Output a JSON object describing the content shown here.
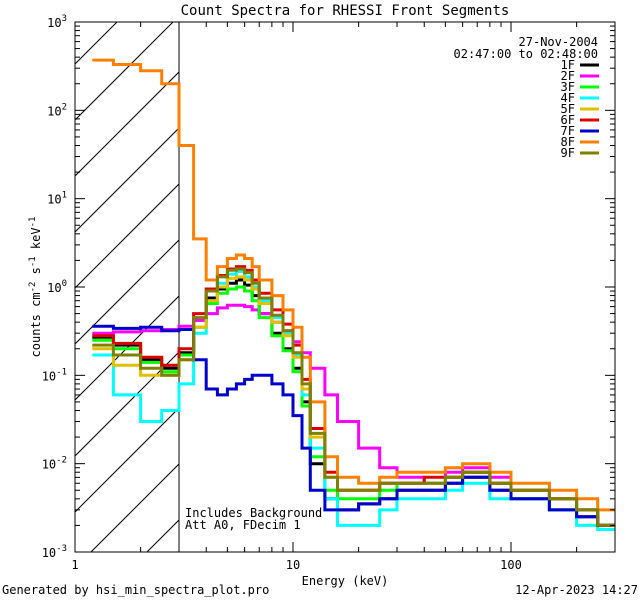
{
  "chart_data": {
    "type": "line",
    "title": "Count Spectra for RHESSI Front Segments",
    "xlabel": "Energy (keV)",
    "ylabel": "counts cm^-2 s^-1 keV^-1",
    "xscale": "log",
    "yscale": "log",
    "xlim": [
      1,
      300
    ],
    "ylim": [
      0.001,
      1000
    ],
    "x_ticks": [
      {
        "v": 1,
        "label": "1"
      },
      {
        "v": 10,
        "label": "10"
      },
      {
        "v": 100,
        "label": "100"
      }
    ],
    "y_ticks": [
      {
        "v": 0.001,
        "base": "10",
        "exp": "-3"
      },
      {
        "v": 0.01,
        "base": "10",
        "exp": "-2"
      },
      {
        "v": 0.1,
        "base": "10",
        "exp": "-1"
      },
      {
        "v": 1,
        "base": "10",
        "exp": "0"
      },
      {
        "v": 10,
        "base": "10",
        "exp": "1"
      },
      {
        "v": 100,
        "base": "10",
        "exp": "2"
      },
      {
        "v": 1000,
        "base": "10",
        "exp": "3"
      }
    ],
    "hatch_region": [
      1,
      3
    ],
    "legend_position": "top-right",
    "date": "27-Nov-2004",
    "time_range": "02:47:00 to 02:48:00",
    "annotations": [
      "Includes Background",
      "Att A0, FDecim 1"
    ],
    "series": [
      {
        "name": "1F",
        "color": "#000000",
        "x": [
          1.2,
          1.5,
          2,
          2.5,
          3,
          3.5,
          4,
          4.5,
          5,
          5.5,
          6,
          6.5,
          7,
          8,
          9,
          10,
          11,
          12,
          14,
          16,
          20,
          25,
          30,
          40,
          50,
          60,
          80,
          100,
          150,
          200,
          250
        ],
        "y": [
          0.27,
          0.22,
          0.15,
          0.12,
          0.18,
          0.42,
          0.75,
          0.95,
          1.1,
          1.2,
          1.05,
          0.8,
          0.5,
          0.3,
          0.2,
          0.12,
          0.05,
          0.01,
          0.004,
          0.003,
          0.0035,
          0.004,
          0.005,
          0.005,
          0.006,
          0.007,
          0.005,
          0.004,
          0.003,
          0.0025,
          0.002
        ]
      },
      {
        "name": "2F",
        "color": "#ff00ff",
        "x": [
          1.2,
          1.5,
          2,
          2.5,
          3,
          3.5,
          4,
          4.5,
          5,
          5.5,
          6,
          6.5,
          7,
          8,
          9,
          10,
          11,
          12,
          14,
          16,
          20,
          25,
          30,
          40,
          50,
          60,
          80,
          100,
          150,
          200,
          250
        ],
        "y": [
          0.3,
          0.31,
          0.32,
          0.33,
          0.36,
          0.42,
          0.5,
          0.58,
          0.62,
          0.62,
          0.6,
          0.55,
          0.5,
          0.4,
          0.32,
          0.24,
          0.18,
          0.12,
          0.06,
          0.03,
          0.015,
          0.009,
          0.007,
          0.006,
          0.008,
          0.009,
          0.007,
          0.005,
          0.004,
          0.003,
          0.002
        ]
      },
      {
        "name": "3F",
        "color": "#00ff00",
        "x": [
          1.2,
          1.5,
          2,
          2.5,
          3,
          3.5,
          4,
          4.5,
          5,
          5.5,
          6,
          6.5,
          7,
          8,
          9,
          10,
          11,
          12,
          14,
          16,
          20,
          25,
          30,
          40,
          50,
          60,
          80,
          100,
          150,
          200,
          250
        ],
        "y": [
          0.25,
          0.2,
          0.14,
          0.11,
          0.17,
          0.35,
          0.65,
          0.85,
          0.95,
          1.0,
          0.9,
          0.7,
          0.45,
          0.28,
          0.19,
          0.11,
          0.045,
          0.012,
          0.005,
          0.004,
          0.004,
          0.005,
          0.006,
          0.006,
          0.007,
          0.008,
          0.006,
          0.005,
          0.004,
          0.003,
          0.002
        ]
      },
      {
        "name": "4F",
        "color": "#00ffff",
        "x": [
          1.2,
          1.5,
          2,
          2.5,
          3,
          3.5,
          4,
          4.5,
          5,
          5.5,
          6,
          6.5,
          7,
          8,
          9,
          10,
          11,
          12,
          14,
          16,
          20,
          25,
          30,
          40,
          50,
          60,
          80,
          100,
          150,
          200,
          250
        ],
        "y": [
          0.17,
          0.06,
          0.03,
          0.04,
          0.08,
          0.3,
          0.7,
          1.1,
          1.4,
          1.5,
          1.3,
          1.0,
          0.7,
          0.45,
          0.3,
          0.17,
          0.06,
          0.015,
          0.004,
          0.002,
          0.002,
          0.003,
          0.004,
          0.004,
          0.005,
          0.006,
          0.004,
          0.004,
          0.003,
          0.002,
          0.0018
        ]
      },
      {
        "name": "5F",
        "color": "#e0c000",
        "x": [
          1.2,
          1.5,
          2,
          2.5,
          3,
          3.5,
          4,
          4.5,
          5,
          5.5,
          6,
          6.5,
          7,
          8,
          9,
          10,
          11,
          12,
          14,
          16,
          20,
          25,
          30,
          40,
          50,
          60,
          80,
          100,
          150,
          200,
          250
        ],
        "y": [
          0.2,
          0.13,
          0.1,
          0.1,
          0.15,
          0.35,
          0.7,
          1.0,
          1.25,
          1.3,
          1.2,
          0.95,
          0.65,
          0.4,
          0.28,
          0.16,
          0.07,
          0.02,
          0.007,
          0.005,
          0.005,
          0.006,
          0.006,
          0.006,
          0.007,
          0.008,
          0.006,
          0.005,
          0.004,
          0.003,
          0.002
        ]
      },
      {
        "name": "6F",
        "color": "#dd0000",
        "x": [
          1.2,
          1.5,
          2,
          2.5,
          3,
          3.5,
          4,
          4.5,
          5,
          5.5,
          6,
          6.5,
          7,
          8,
          9,
          10,
          11,
          12,
          14,
          16,
          20,
          25,
          30,
          40,
          50,
          60,
          80,
          100,
          150,
          200,
          250
        ],
        "y": [
          0.28,
          0.23,
          0.16,
          0.13,
          0.2,
          0.5,
          0.95,
          1.35,
          1.6,
          1.7,
          1.55,
          1.2,
          0.85,
          0.55,
          0.38,
          0.22,
          0.09,
          0.025,
          0.008,
          0.005,
          0.005,
          0.006,
          0.006,
          0.007,
          0.007,
          0.008,
          0.006,
          0.005,
          0.004,
          0.003,
          0.002
        ]
      },
      {
        "name": "7F",
        "color": "#0000cc",
        "x": [
          1.2,
          1.5,
          2,
          2.5,
          3,
          3.5,
          4,
          4.5,
          5,
          5.5,
          6,
          6.5,
          7,
          8,
          9,
          10,
          11,
          12,
          14,
          16,
          20,
          25,
          30,
          40,
          50,
          60,
          80,
          100,
          150,
          200,
          250
        ],
        "y": [
          0.36,
          0.34,
          0.35,
          0.32,
          0.33,
          0.15,
          0.07,
          0.06,
          0.07,
          0.08,
          0.09,
          0.1,
          0.1,
          0.08,
          0.06,
          0.035,
          0.015,
          0.005,
          0.003,
          0.003,
          0.0035,
          0.004,
          0.005,
          0.005,
          0.006,
          0.007,
          0.005,
          0.004,
          0.003,
          0.0025,
          0.002
        ]
      },
      {
        "name": "8F",
        "color": "#ff8000",
        "x": [
          1.2,
          1.5,
          2,
          2.5,
          3,
          3.5,
          4,
          4.5,
          5,
          5.5,
          6,
          6.5,
          7,
          8,
          9,
          10,
          11,
          12,
          14,
          16,
          20,
          25,
          30,
          40,
          50,
          60,
          80,
          100,
          150,
          200,
          250
        ],
        "y": [
          370,
          330,
          280,
          200,
          40,
          3.5,
          1.2,
          1.7,
          2.1,
          2.3,
          2.1,
          1.7,
          1.2,
          0.8,
          0.55,
          0.35,
          0.16,
          0.05,
          0.012,
          0.007,
          0.006,
          0.007,
          0.008,
          0.008,
          0.009,
          0.01,
          0.008,
          0.006,
          0.005,
          0.004,
          0.003
        ]
      },
      {
        "name": "9F",
        "color": "#808000",
        "x": [
          1.2,
          1.5,
          2,
          2.5,
          3,
          3.5,
          4,
          4.5,
          5,
          5.5,
          6,
          6.5,
          7,
          8,
          9,
          10,
          11,
          12,
          14,
          16,
          20,
          25,
          30,
          40,
          50,
          60,
          80,
          100,
          150,
          200,
          250
        ],
        "y": [
          0.22,
          0.17,
          0.12,
          0.1,
          0.15,
          0.45,
          0.9,
          1.3,
          1.55,
          1.6,
          1.45,
          1.1,
          0.75,
          0.48,
          0.32,
          0.18,
          0.08,
          0.022,
          0.007,
          0.005,
          0.005,
          0.006,
          0.006,
          0.006,
          0.007,
          0.008,
          0.006,
          0.005,
          0.004,
          0.003,
          0.002
        ]
      }
    ]
  },
  "footer": {
    "generated_by": "Generated by hsi_min_spectra_plot.pro",
    "timestamp": "12-Apr-2023 14:27"
  }
}
